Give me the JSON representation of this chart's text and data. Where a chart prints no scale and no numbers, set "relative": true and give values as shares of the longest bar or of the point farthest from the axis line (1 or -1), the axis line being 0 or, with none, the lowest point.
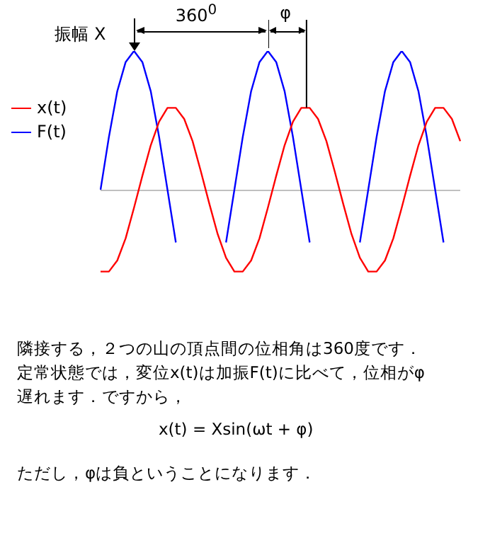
{
  "chart_data": {
    "type": "line",
    "relative": true,
    "legend": "left",
    "marker": "none",
    "line_style": "solid",
    "categories": [
      null,
      null,
      null,
      null,
      null,
      null,
      null,
      null,
      null,
      null,
      null,
      null,
      null,
      null,
      null,
      null,
      null,
      null,
      null,
      null,
      null,
      null,
      null,
      null,
      null,
      null,
      null,
      null,
      null,
      null,
      null,
      null,
      null,
      null,
      null,
      null,
      null,
      null,
      null,
      null,
      null,
      null,
      null,
      null
    ],
    "series": [
      {
        "name": "x(t)",
        "color": "#ff0000",
        "values": [
          -0.59,
          -0.59,
          -0.51,
          -0.35,
          -0.13,
          0.1,
          0.32,
          0.49,
          0.59,
          0.59,
          0.51,
          0.35,
          0.13,
          -0.1,
          -0.32,
          -0.49,
          -0.59,
          -0.59,
          -0.51,
          -0.35,
          -0.13,
          0.1,
          0.32,
          0.49,
          0.59,
          0.59,
          0.51,
          0.35,
          0.13,
          -0.1,
          -0.32,
          -0.49,
          -0.59,
          -0.59,
          -0.51,
          -0.35,
          -0.13,
          0.1,
          0.32,
          0.49,
          0.59,
          0.59,
          0.51,
          0.35
        ]
      },
      {
        "name": "F(t)",
        "color": "#0000ff",
        "values": [
          0,
          0.38,
          0.71,
          0.92,
          1,
          0.92,
          0.71,
          0.38,
          0,
          -0.38,
          null,
          null,
          null,
          null,
          null,
          -0.38,
          0,
          0.38,
          0.71,
          0.92,
          1,
          0.92,
          0.71,
          0.38,
          0,
          -0.38,
          null,
          null,
          null,
          null,
          null,
          -0.38,
          0,
          0.38,
          0.71,
          0.92,
          1,
          0.92,
          0.71,
          0.38,
          0,
          -0.38,
          null,
          null
        ]
      }
    ],
    "annotations": [
      "振幅 X",
      "360$^{0}$",
      "φ",
      "隣接する，２つの山の頂点間の位相角は360度です．",
      "定常状態では，変位x(t)は加振F(t)に比べて，位相がφ",
      "遅れます．ですから，",
      "x(t) = Xsin(ωt + φ)",
      "ただし，φは負ということになります．"
    ]
  }
}
